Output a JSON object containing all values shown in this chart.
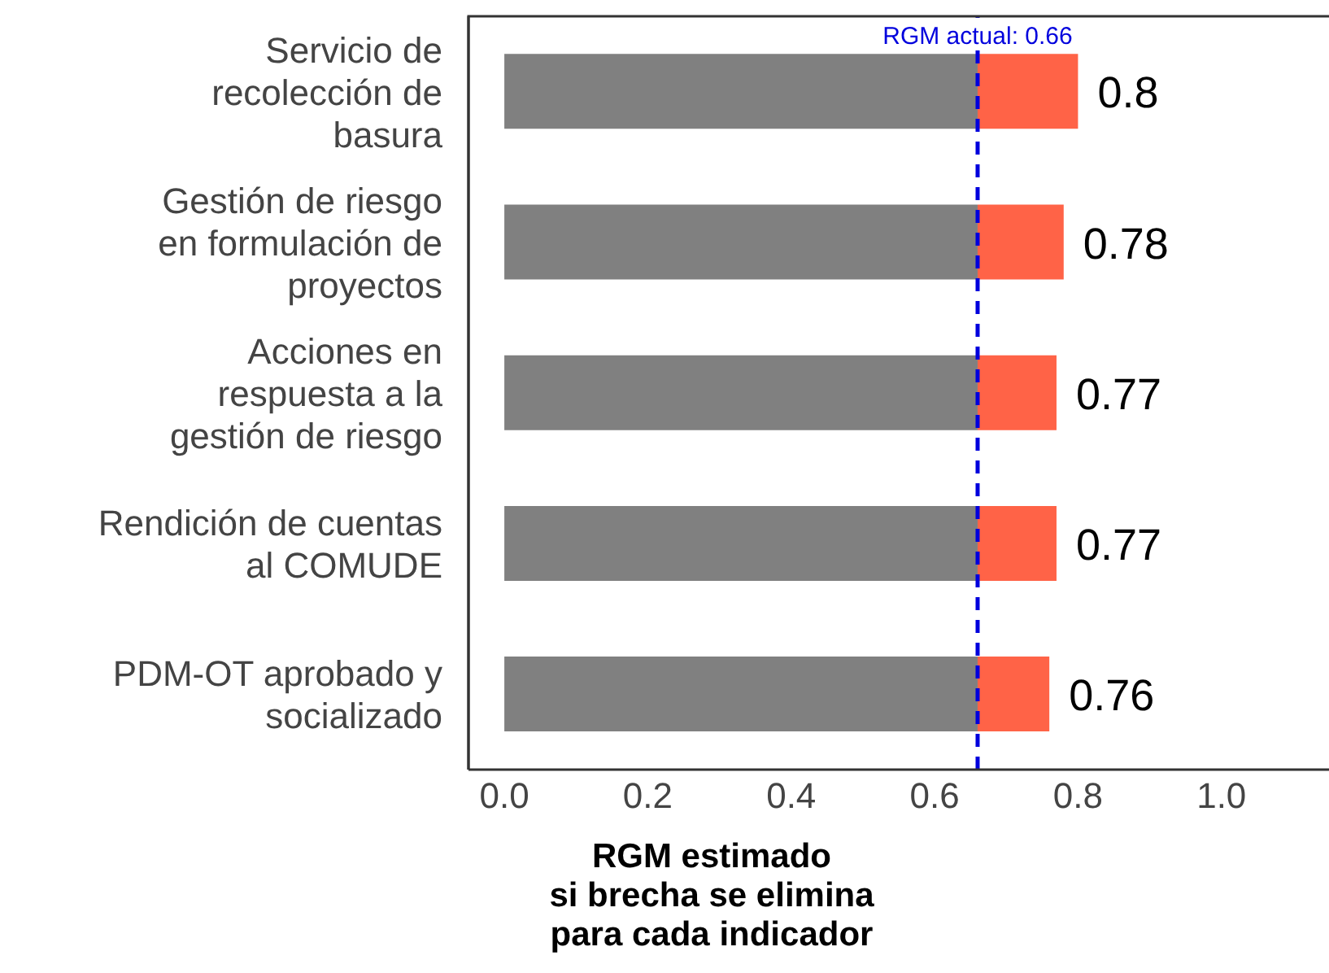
{
  "chart_data": {
    "type": "bar",
    "orientation": "horizontal",
    "stacked": true,
    "categories": [
      "Servicio de\nrecolección de\nbasura",
      "Gestión de riesgo\nen formulación de\nproyectos",
      "Acciones en\nrespuesta a la\ngestión de riesgo",
      "Rendición de cuentas\nal COMUDE",
      "PDM-OT aprobado y\nsocializado"
    ],
    "series": [
      {
        "color": "#808080",
        "values": [
          0.66,
          0.66,
          0.66,
          0.66,
          0.66
        ]
      },
      {
        "color": "#ff6347",
        "values": [
          0.14,
          0.12,
          0.11,
          0.11,
          0.1
        ]
      }
    ],
    "totals": [
      "0.8",
      "0.78",
      "0.77",
      "0.77",
      "0.76"
    ],
    "xlim": [
      -0.05,
      1.15
    ],
    "xticks": [
      {
        "value": 0,
        "label": "0.0"
      },
      {
        "value": 0.2,
        "label": "0.2"
      },
      {
        "value": 0.4,
        "label": "0.4"
      },
      {
        "value": 0.6,
        "label": "0.6"
      },
      {
        "value": 0.8,
        "label": "0.8"
      },
      {
        "value": 1,
        "label": "1.0"
      }
    ],
    "xlabel": "RGM estimado\nsi brecha se elimina\npara cada indicador",
    "ref_lines": [
      {
        "axis": "x",
        "value": 0.66,
        "label": "RGM actual: 0.66",
        "color": "#0000dd",
        "line_style": "dashed"
      }
    ],
    "grid": false,
    "legend": false
  }
}
